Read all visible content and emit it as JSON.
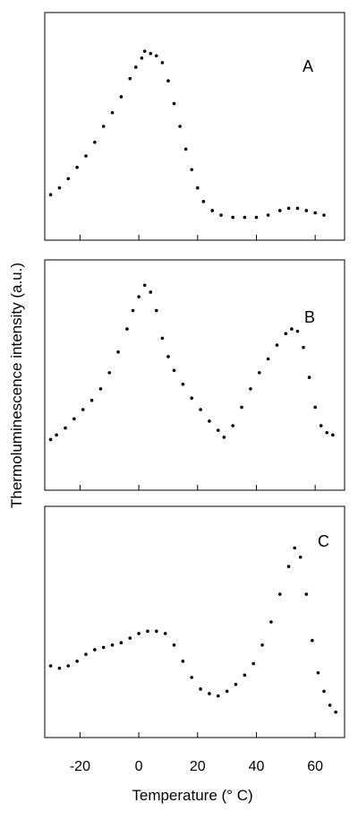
{
  "chart_data": {
    "type": "scatter",
    "xlabel": "Temperature (° C)",
    "ylabel": "Thermoluminescence intensity (a.u.)",
    "xlim": [
      -32,
      70
    ],
    "xticks": [
      -20,
      0,
      20,
      40,
      60
    ],
    "xtick_labels": [
      "-20",
      "0",
      "20",
      "40",
      "60"
    ],
    "panels": [
      {
        "label": "A",
        "ylim": [
          0,
          1
        ],
        "series": [
          {
            "values": [
              [
                -30,
                0.2
              ],
              [
                -27,
                0.23
              ],
              [
                -24,
                0.27
              ],
              [
                -21,
                0.32
              ],
              [
                -18,
                0.37
              ],
              [
                -15,
                0.43
              ],
              [
                -12,
                0.5
              ],
              [
                -9,
                0.56
              ],
              [
                -6,
                0.63
              ],
              [
                -3,
                0.71
              ],
              [
                -1,
                0.76
              ],
              [
                1,
                0.8
              ],
              [
                2,
                0.83
              ],
              [
                4,
                0.82
              ],
              [
                6,
                0.81
              ],
              [
                8,
                0.78
              ],
              [
                10,
                0.7
              ],
              [
                12,
                0.6
              ],
              [
                14,
                0.5
              ],
              [
                16,
                0.4
              ],
              [
                18,
                0.31
              ],
              [
                20,
                0.23
              ],
              [
                22,
                0.17
              ],
              [
                25,
                0.13
              ],
              [
                28,
                0.11
              ],
              [
                32,
                0.1
              ],
              [
                36,
                0.1
              ],
              [
                40,
                0.1
              ],
              [
                44,
                0.11
              ],
              [
                48,
                0.13
              ],
              [
                51,
                0.14
              ],
              [
                54,
                0.14
              ],
              [
                57,
                0.13
              ],
              [
                60,
                0.12
              ],
              [
                63,
                0.11
              ]
            ]
          }
        ]
      },
      {
        "label": "B",
        "ylim": [
          0,
          1
        ],
        "series": [
          {
            "values": [
              [
                -30,
                0.22
              ],
              [
                -28,
                0.24
              ],
              [
                -25,
                0.27
              ],
              [
                -22,
                0.31
              ],
              [
                -19,
                0.35
              ],
              [
                -16,
                0.39
              ],
              [
                -13,
                0.44
              ],
              [
                -10,
                0.51
              ],
              [
                -7,
                0.6
              ],
              [
                -4,
                0.7
              ],
              [
                -2,
                0.78
              ],
              [
                0,
                0.84
              ],
              [
                2,
                0.89
              ],
              [
                4,
                0.86
              ],
              [
                6,
                0.78
              ],
              [
                8,
                0.66
              ],
              [
                10,
                0.58
              ],
              [
                12,
                0.52
              ],
              [
                15,
                0.46
              ],
              [
                18,
                0.4
              ],
              [
                21,
                0.35
              ],
              [
                24,
                0.3
              ],
              [
                27,
                0.26
              ],
              [
                29,
                0.23
              ],
              [
                32,
                0.28
              ],
              [
                35,
                0.36
              ],
              [
                38,
                0.44
              ],
              [
                41,
                0.51
              ],
              [
                44,
                0.57
              ],
              [
                47,
                0.63
              ],
              [
                50,
                0.68
              ],
              [
                52,
                0.7
              ],
              [
                54,
                0.69
              ],
              [
                56,
                0.62
              ],
              [
                58,
                0.49
              ],
              [
                60,
                0.36
              ],
              [
                62,
                0.28
              ],
              [
                64,
                0.25
              ],
              [
                66,
                0.24
              ]
            ]
          }
        ]
      },
      {
        "label": "C",
        "ylim": [
          0,
          1
        ],
        "series": [
          {
            "values": [
              [
                -30,
                0.31
              ],
              [
                -27,
                0.3
              ],
              [
                -24,
                0.31
              ],
              [
                -21,
                0.33
              ],
              [
                -18,
                0.36
              ],
              [
                -15,
                0.38
              ],
              [
                -12,
                0.39
              ],
              [
                -9,
                0.4
              ],
              [
                -6,
                0.41
              ],
              [
                -3,
                0.43
              ],
              [
                0,
                0.45
              ],
              [
                3,
                0.46
              ],
              [
                6,
                0.46
              ],
              [
                9,
                0.45
              ],
              [
                12,
                0.4
              ],
              [
                15,
                0.33
              ],
              [
                18,
                0.26
              ],
              [
                21,
                0.21
              ],
              [
                24,
                0.19
              ],
              [
                27,
                0.18
              ],
              [
                30,
                0.2
              ],
              [
                33,
                0.23
              ],
              [
                36,
                0.27
              ],
              [
                39,
                0.32
              ],
              [
                42,
                0.4
              ],
              [
                45,
                0.5
              ],
              [
                48,
                0.62
              ],
              [
                51,
                0.74
              ],
              [
                53,
                0.82
              ],
              [
                55,
                0.78
              ],
              [
                57,
                0.62
              ],
              [
                59,
                0.42
              ],
              [
                61,
                0.28
              ],
              [
                63,
                0.2
              ],
              [
                65,
                0.14
              ],
              [
                67,
                0.11
              ]
            ]
          }
        ]
      }
    ]
  }
}
